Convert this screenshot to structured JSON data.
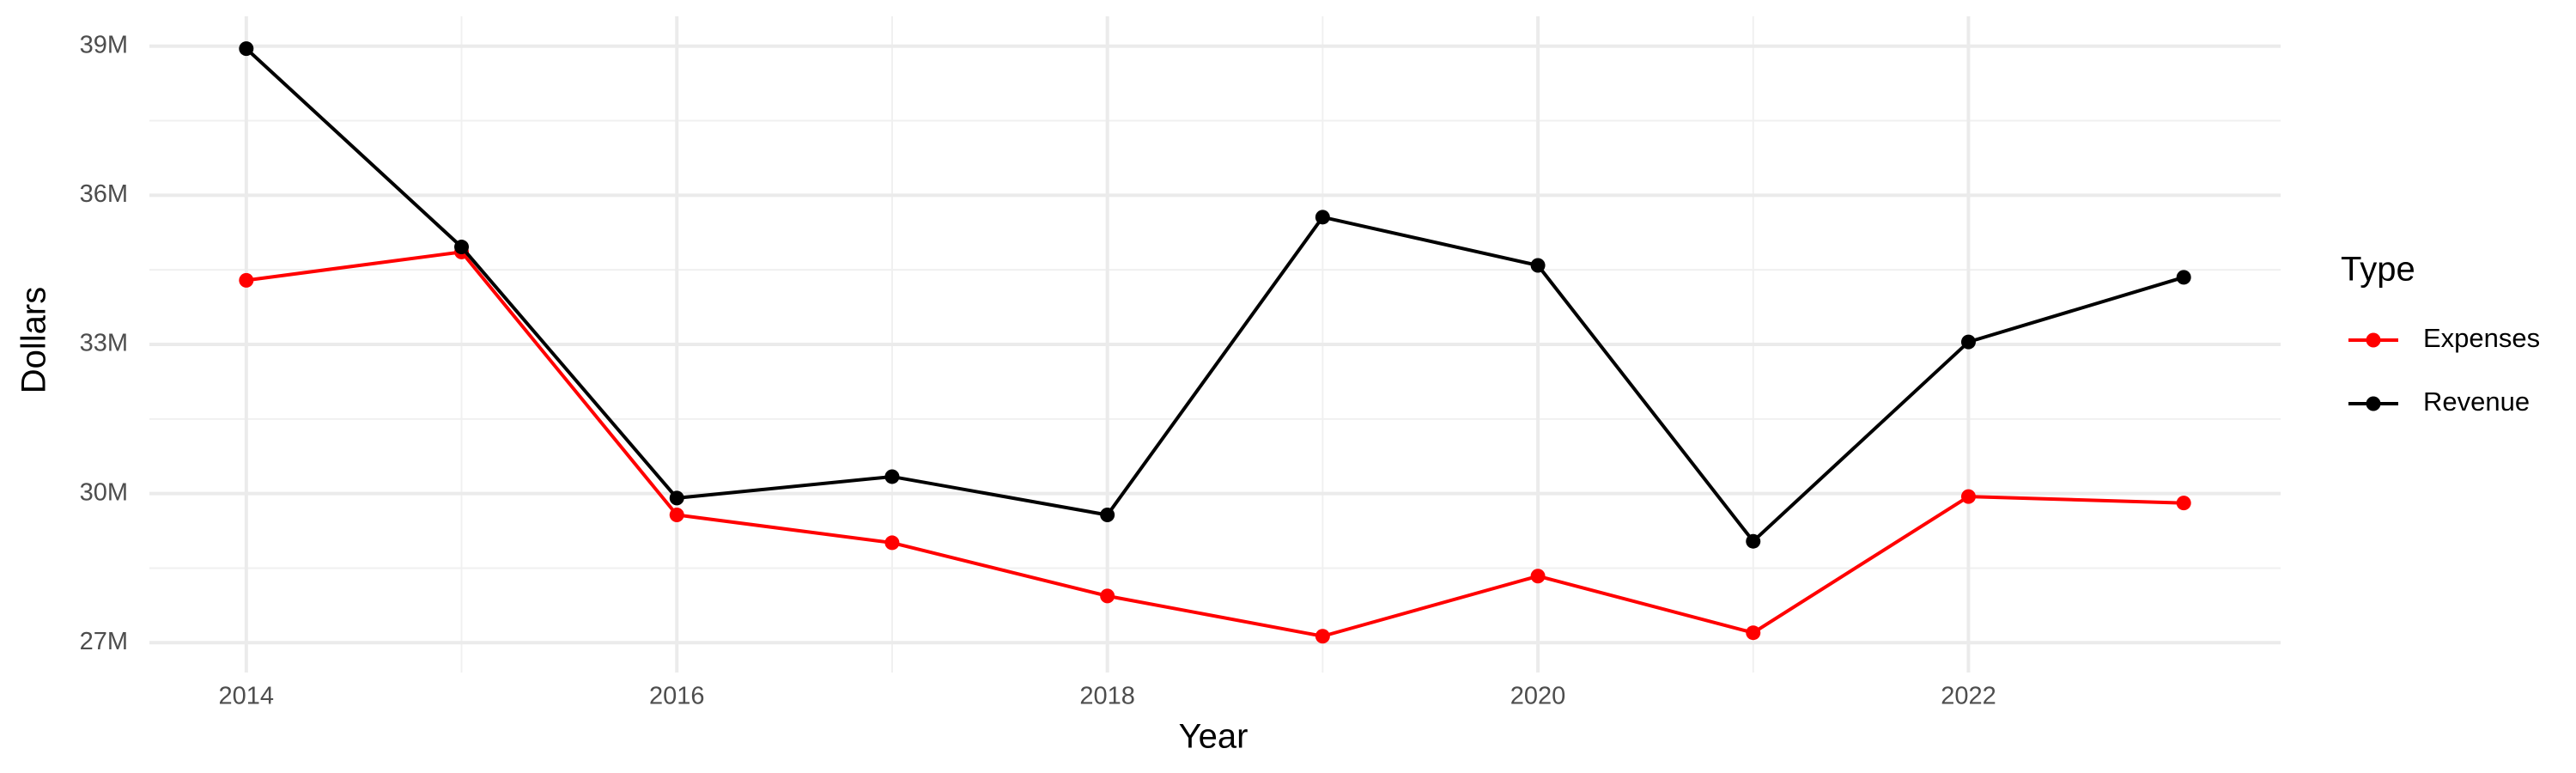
{
  "chart_data": {
    "type": "line",
    "x_label": "Year",
    "y_label": "Dollars",
    "legend_title": "Type",
    "legend_position": "right",
    "grid": true,
    "x": [
      2014,
      2015,
      2016,
      2017,
      2018,
      2019,
      2020,
      2021,
      2022,
      2023
    ],
    "series": [
      {
        "name": "Expenses",
        "color": "#ff0000",
        "values": [
          34290000,
          34860000,
          29570000,
          29010000,
          27940000,
          27130000,
          28340000,
          27200000,
          29940000,
          29810000
        ]
      },
      {
        "name": "Revenue",
        "color": "#000000",
        "values": [
          38950000,
          34960000,
          29910000,
          30340000,
          29570000,
          35560000,
          34590000,
          29040000,
          33050000,
          34350000
        ]
      }
    ],
    "xlim": [
      2013.55,
      2023.45
    ],
    "xticks": [
      2014,
      2016,
      2018,
      2020,
      2022
    ],
    "ylim": [
      26400000,
      39600000
    ],
    "yticks": [
      {
        "value": 27000000,
        "label": "27M"
      },
      {
        "value": 30000000,
        "label": "30M"
      },
      {
        "value": 33000000,
        "label": "33M"
      },
      {
        "value": 36000000,
        "label": "36M"
      },
      {
        "value": 39000000,
        "label": "39M"
      }
    ]
  }
}
